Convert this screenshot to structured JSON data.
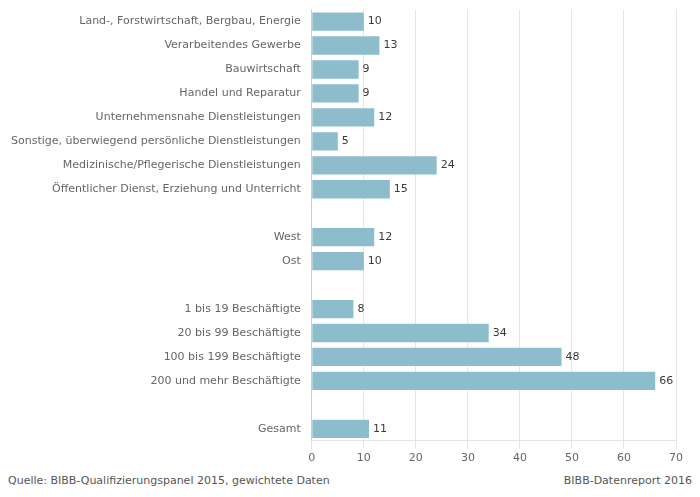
{
  "chart_data": {
    "type": "bar",
    "orientation": "horizontal",
    "categories": [
      "Land-, Forstwirtschaft, Bergbau, Energie",
      "Verarbeitendes Gewerbe",
      "Bauwirtschaft",
      "Handel und Reparatur",
      "Unternehmensnahe Dienstleistungen",
      "Sonstige, überwiegend persönliche Dienstleistungen",
      "Medizinische/Pflegerische Dienstleistungen",
      "Öffentlicher Dienst, Erziehung und Unterricht",
      null,
      "West",
      "Ost",
      null,
      "1 bis 19 Beschäftigte",
      "20 bis 99 Beschäftigte",
      "100 bis 199 Beschäftigte",
      "200 und mehr Beschäftigte",
      null,
      "Gesamt"
    ],
    "values": [
      10,
      13,
      9,
      9,
      12,
      5,
      24,
      15,
      null,
      12,
      10,
      null,
      8,
      34,
      48,
      66,
      null,
      11
    ],
    "color": "#8dbccc",
    "xlim": [
      0,
      70
    ],
    "xticks": [
      0,
      10,
      20,
      30,
      40,
      50,
      60,
      70
    ],
    "grid": true,
    "data_labels": true,
    "annotations": [
      "Quelle: BIBB-Qualifizierungspanel 2015, gewichtete Daten",
      "BIBB-Datenreport 2016"
    ]
  }
}
